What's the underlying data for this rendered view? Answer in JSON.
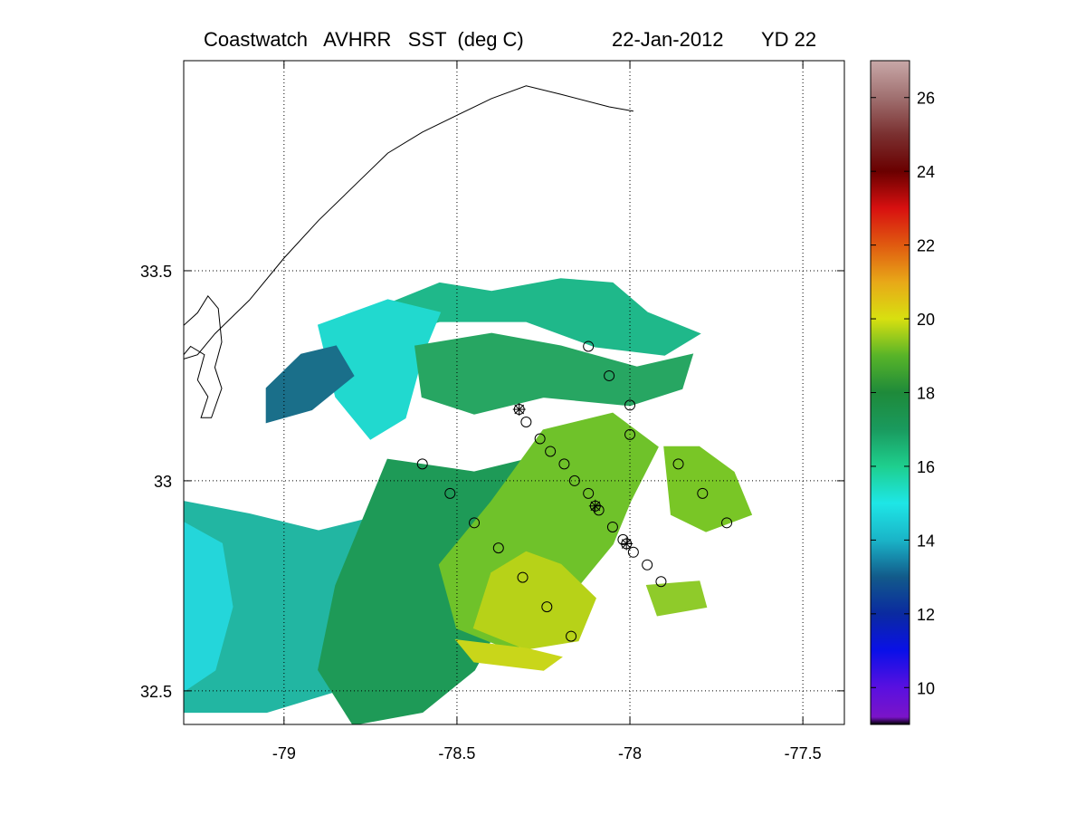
{
  "title": {
    "product": "Coastwatch   AVHRR   SST  (deg C)",
    "date": "22-Jan-2012",
    "yearday": "YD 22"
  },
  "map": {
    "lon_range": [
      -79.29,
      -77.38
    ],
    "lat_range": [
      32.42,
      34.0
    ],
    "x_ticks": [
      -79,
      -78.5,
      -78,
      -77.5
    ],
    "x_tick_labels": [
      "-79",
      "-78.5",
      "-78",
      "-77.5"
    ],
    "y_ticks": [
      32.5,
      33.0,
      33.5
    ],
    "y_tick_labels": [
      "32.5",
      "33",
      "33.5"
    ],
    "grid": "dotted",
    "coastline": [
      [
        -77.99,
        33.88
      ],
      [
        -78.06,
        33.89
      ],
      [
        -78.2,
        33.92
      ],
      [
        -78.3,
        33.94
      ],
      [
        -78.4,
        33.91
      ],
      [
        -78.5,
        33.87
      ],
      [
        -78.6,
        33.83
      ],
      [
        -78.7,
        33.78
      ],
      [
        -78.8,
        33.7
      ],
      [
        -78.9,
        33.62
      ],
      [
        -79.0,
        33.53
      ],
      [
        -79.1,
        33.43
      ],
      [
        -79.2,
        33.35
      ],
      [
        -79.25,
        33.3
      ],
      [
        -79.29,
        33.29
      ]
    ],
    "coastline_inner": [
      [
        -79.29,
        33.37
      ],
      [
        -79.25,
        33.4
      ],
      [
        -79.22,
        33.44
      ],
      [
        -79.19,
        33.41
      ],
      [
        -79.18,
        33.33
      ],
      [
        -79.2,
        33.27
      ],
      [
        -79.18,
        33.22
      ],
      [
        -79.21,
        33.15
      ],
      [
        -79.24,
        33.15
      ],
      [
        -79.22,
        33.2
      ],
      [
        -79.25,
        33.24
      ],
      [
        -79.23,
        33.3
      ],
      [
        -79.27,
        33.32
      ],
      [
        -79.29,
        33.3
      ]
    ],
    "sst_patches": [
      {
        "name": "northern-patch",
        "color": "#1fb88a",
        "pts": [
          [
            -78.7,
            33.42
          ],
          [
            -78.55,
            33.47
          ],
          [
            -78.4,
            33.45
          ],
          [
            -78.2,
            33.48
          ],
          [
            -78.05,
            33.47
          ],
          [
            -77.95,
            33.4
          ],
          [
            -77.8,
            33.35
          ],
          [
            -77.9,
            33.3
          ],
          [
            -78.1,
            33.32
          ],
          [
            -78.3,
            33.38
          ],
          [
            -78.55,
            33.38
          ],
          [
            -78.75,
            33.33
          ]
        ]
      },
      {
        "name": "cyan-plume",
        "color": "#21d9cf",
        "pts": [
          [
            -78.9,
            33.37
          ],
          [
            -78.7,
            33.43
          ],
          [
            -78.55,
            33.4
          ],
          [
            -78.6,
            33.3
          ],
          [
            -78.65,
            33.15
          ],
          [
            -78.75,
            33.1
          ],
          [
            -78.85,
            33.2
          ]
        ]
      },
      {
        "name": "dark-teal-filament",
        "color": "#1a6f8a",
        "pts": [
          [
            -79.05,
            33.22
          ],
          [
            -78.95,
            33.3
          ],
          [
            -78.85,
            33.32
          ],
          [
            -78.8,
            33.25
          ],
          [
            -78.92,
            33.17
          ],
          [
            -79.05,
            33.14
          ]
        ]
      },
      {
        "name": "mid-shelf-green",
        "color": "#27a662",
        "pts": [
          [
            -78.62,
            33.32
          ],
          [
            -78.4,
            33.35
          ],
          [
            -78.2,
            33.32
          ],
          [
            -77.98,
            33.27
          ],
          [
            -77.82,
            33.3
          ],
          [
            -77.85,
            33.22
          ],
          [
            -78.0,
            33.18
          ],
          [
            -78.25,
            33.2
          ],
          [
            -78.45,
            33.16
          ],
          [
            -78.6,
            33.2
          ]
        ]
      },
      {
        "name": "south-west-teal",
        "color": "#22b6a2",
        "pts": [
          [
            -79.29,
            32.95
          ],
          [
            -79.1,
            32.92
          ],
          [
            -78.9,
            32.88
          ],
          [
            -78.7,
            32.92
          ],
          [
            -78.55,
            32.97
          ],
          [
            -78.55,
            32.8
          ],
          [
            -78.7,
            32.6
          ],
          [
            -78.85,
            32.5
          ],
          [
            -79.05,
            32.45
          ],
          [
            -79.29,
            32.45
          ]
        ]
      },
      {
        "name": "cyan-coast",
        "color": "#24d6da",
        "pts": [
          [
            -79.29,
            32.9
          ],
          [
            -79.18,
            32.85
          ],
          [
            -79.15,
            32.7
          ],
          [
            -79.2,
            32.55
          ],
          [
            -79.29,
            32.5
          ]
        ]
      },
      {
        "name": "southern-green",
        "color": "#1e9a57",
        "pts": [
          [
            -78.7,
            33.05
          ],
          [
            -78.45,
            33.02
          ],
          [
            -78.3,
            33.05
          ],
          [
            -78.25,
            32.9
          ],
          [
            -78.35,
            32.7
          ],
          [
            -78.45,
            32.55
          ],
          [
            -78.6,
            32.45
          ],
          [
            -78.8,
            32.42
          ],
          [
            -78.9,
            32.55
          ],
          [
            -78.85,
            32.75
          ]
        ]
      },
      {
        "name": "gulf-stream-front",
        "color": "#6fc22a",
        "pts": [
          [
            -78.4,
            32.95
          ],
          [
            -78.25,
            33.12
          ],
          [
            -78.05,
            33.16
          ],
          [
            -77.92,
            33.08
          ],
          [
            -78.0,
            32.95
          ],
          [
            -78.05,
            32.85
          ],
          [
            -78.15,
            32.75
          ],
          [
            -78.2,
            32.63
          ],
          [
            -78.35,
            32.6
          ],
          [
            -78.5,
            32.65
          ],
          [
            -78.55,
            32.8
          ]
        ]
      },
      {
        "name": "warm-core",
        "color": "#b7d218",
        "pts": [
          [
            -78.4,
            32.78
          ],
          [
            -78.3,
            32.83
          ],
          [
            -78.2,
            32.8
          ],
          [
            -78.1,
            32.72
          ],
          [
            -78.15,
            32.62
          ],
          [
            -78.3,
            32.6
          ],
          [
            -78.45,
            32.65
          ]
        ]
      },
      {
        "name": "east-patch",
        "color": "#79c626",
        "pts": [
          [
            -77.9,
            33.08
          ],
          [
            -77.8,
            33.08
          ],
          [
            -77.7,
            33.02
          ],
          [
            -77.65,
            32.92
          ],
          [
            -77.78,
            32.88
          ],
          [
            -77.88,
            32.92
          ]
        ]
      },
      {
        "name": "south-east-patch",
        "color": "#8fcb2a",
        "pts": [
          [
            -77.95,
            32.75
          ],
          [
            -77.8,
            32.76
          ],
          [
            -77.78,
            32.7
          ],
          [
            -77.92,
            32.68
          ]
        ]
      },
      {
        "name": "yellow-band",
        "color": "#c9d61a",
        "pts": [
          [
            -78.5,
            32.62
          ],
          [
            -78.3,
            32.6
          ],
          [
            -78.2,
            32.58
          ],
          [
            -78.25,
            32.55
          ],
          [
            -78.45,
            32.57
          ]
        ]
      }
    ],
    "stations_circle": [
      [
        -78.12,
        33.32
      ],
      [
        -78.06,
        33.25
      ],
      [
        -78.0,
        33.18
      ],
      [
        -78.3,
        33.14
      ],
      [
        -78.26,
        33.1
      ],
      [
        -78.23,
        33.07
      ],
      [
        -78.19,
        33.04
      ],
      [
        -78.16,
        33.0
      ],
      [
        -78.12,
        32.97
      ],
      [
        -78.09,
        32.93
      ],
      [
        -78.05,
        32.89
      ],
      [
        -78.02,
        32.86
      ],
      [
        -77.99,
        32.83
      ],
      [
        -77.95,
        32.8
      ],
      [
        -77.91,
        32.76
      ],
      [
        -78.0,
        33.11
      ],
      [
        -77.86,
        33.04
      ],
      [
        -77.79,
        32.97
      ],
      [
        -77.72,
        32.9
      ],
      [
        -78.6,
        33.04
      ],
      [
        -78.52,
        32.97
      ],
      [
        -78.45,
        32.9
      ],
      [
        -78.38,
        32.84
      ],
      [
        -78.31,
        32.77
      ],
      [
        -78.24,
        32.7
      ],
      [
        -78.17,
        32.63
      ]
    ],
    "stations_star": [
      [
        -78.32,
        33.17
      ],
      [
        -78.1,
        32.94
      ],
      [
        -78.01,
        32.85
      ]
    ]
  },
  "colorbar": {
    "min": 9,
    "max": 27,
    "ticks": [
      10,
      12,
      14,
      16,
      18,
      20,
      22,
      24,
      26
    ],
    "tick_labels": [
      "10",
      "12",
      "14",
      "16",
      "18",
      "20",
      "22",
      "24",
      "26"
    ],
    "stops": [
      {
        "v": 9,
        "c": "#000000"
      },
      {
        "v": 9.2,
        "c": "#7a14c8"
      },
      {
        "v": 10,
        "c": "#5a10e0"
      },
      {
        "v": 11,
        "c": "#0a10e8"
      },
      {
        "v": 12,
        "c": "#0a2aa0"
      },
      {
        "v": 13,
        "c": "#125a8a"
      },
      {
        "v": 14,
        "c": "#1ab4c8"
      },
      {
        "v": 15,
        "c": "#1ee6e6"
      },
      {
        "v": 16,
        "c": "#1ecf8e"
      },
      {
        "v": 17,
        "c": "#1a9a5e"
      },
      {
        "v": 18,
        "c": "#1e8a3a"
      },
      {
        "v": 19,
        "c": "#58b428"
      },
      {
        "v": 20,
        "c": "#d8e010"
      },
      {
        "v": 21,
        "c": "#e8a818"
      },
      {
        "v": 22,
        "c": "#e05a10"
      },
      {
        "v": 23,
        "c": "#d81010"
      },
      {
        "v": 24,
        "c": "#6a0000"
      },
      {
        "v": 25,
        "c": "#7a3030"
      },
      {
        "v": 26,
        "c": "#a07070"
      },
      {
        "v": 27,
        "c": "#c8a8a8"
      }
    ]
  }
}
